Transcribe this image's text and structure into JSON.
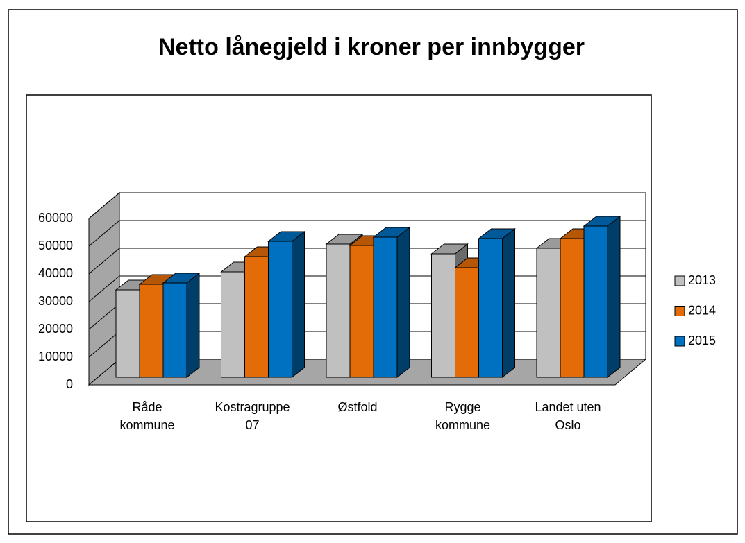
{
  "chart_data": {
    "type": "bar3d",
    "title": "Netto lånegjeld i kroner per innbygger",
    "categories": [
      "Råde kommune",
      "Kostragruppe 07",
      "Østfold",
      "Rygge kommune",
      "Landet uten Oslo"
    ],
    "series": [
      {
        "name": "2013",
        "color": "#c0c0c0",
        "values": [
          31500,
          38000,
          48000,
          44500,
          46500
        ]
      },
      {
        "name": "2014",
        "color": "#e36c09",
        "values": [
          33500,
          43500,
          47500,
          39500,
          50000
        ]
      },
      {
        "name": "2015",
        "color": "#0070c0",
        "values": [
          34000,
          49000,
          50500,
          50000,
          54500
        ]
      }
    ],
    "ylim": [
      0,
      60000
    ],
    "yticks": [
      0,
      10000,
      20000,
      30000,
      40000,
      50000,
      60000
    ],
    "grid": true,
    "legend": "right"
  }
}
